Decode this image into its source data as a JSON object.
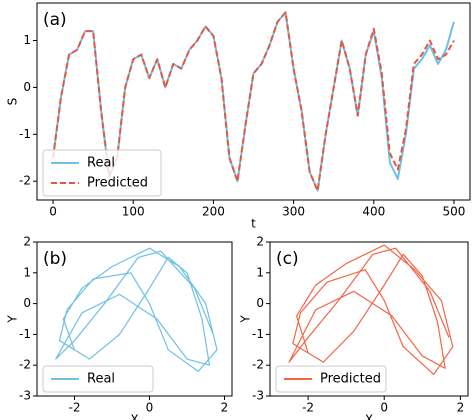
{
  "chart_data": [
    {
      "type": "line",
      "panel_label": "(a)",
      "xlabel": "t",
      "ylabel": "S",
      "x": [
        0,
        10,
        20,
        30,
        40,
        50,
        60,
        70,
        80,
        90,
        100,
        110,
        120,
        130,
        140,
        150,
        160,
        170,
        180,
        190,
        200,
        210,
        220,
        230,
        240,
        250,
        260,
        270,
        280,
        290,
        300,
        310,
        320,
        330,
        340,
        350,
        360,
        370,
        380,
        390,
        400,
        410,
        420,
        430,
        440,
        450,
        460,
        470,
        480,
        490,
        500
      ],
      "series": [
        {
          "name": "Real",
          "color": "#6ec1e4",
          "dash": false,
          "values": [
            -1.5,
            -0.2,
            0.7,
            0.8,
            1.2,
            1.2,
            -0.5,
            -1.9,
            -1.5,
            0.0,
            0.6,
            0.7,
            0.2,
            0.6,
            0.0,
            0.5,
            0.4,
            0.8,
            1.0,
            1.3,
            1.1,
            0.2,
            -1.5,
            -2.0,
            -0.8,
            0.3,
            0.5,
            0.9,
            1.4,
            1.6,
            0.4,
            -0.5,
            -1.8,
            -2.2,
            -1.0,
            0.0,
            1.0,
            0.4,
            -0.6,
            0.7,
            1.2,
            0.2,
            -1.6,
            -1.95,
            -1.0,
            0.4,
            0.6,
            0.9,
            0.5,
            0.8,
            1.4
          ]
        },
        {
          "name": "Predicted",
          "color": "#e8563f",
          "dash": true,
          "values": [
            -1.5,
            -0.2,
            0.7,
            0.8,
            1.2,
            1.2,
            -0.5,
            -1.9,
            -1.5,
            0.0,
            0.6,
            0.7,
            0.2,
            0.6,
            0.0,
            0.5,
            0.4,
            0.8,
            1.0,
            1.3,
            1.1,
            0.2,
            -1.5,
            -2.0,
            -0.8,
            0.3,
            0.5,
            0.9,
            1.4,
            1.6,
            0.4,
            -0.5,
            -1.8,
            -2.2,
            -1.0,
            0.0,
            1.0,
            0.4,
            -0.6,
            0.7,
            1.25,
            0.3,
            -1.4,
            -1.75,
            -0.9,
            0.5,
            0.7,
            1.0,
            0.6,
            0.7,
            1.0
          ]
        }
      ],
      "xlim": [
        -20,
        520
      ],
      "ylim": [
        -2.4,
        1.8
      ],
      "xticks": [
        0,
        100,
        200,
        300,
        400,
        500
      ],
      "yticks": [
        -2,
        -1,
        0,
        1
      ],
      "legend": "lower left"
    },
    {
      "type": "line",
      "panel_label": "(b)",
      "xlabel": "X",
      "ylabel": "Y",
      "x": [
        -2,
        -2.3,
        -1.8,
        -1,
        0,
        0.8,
        1.5,
        1.8,
        1.3,
        0.5,
        0,
        -0.5,
        -1.5,
        -2.2,
        -2.4,
        -1.6,
        -0.8,
        0,
        0.5,
        1,
        1.4,
        1.6,
        1,
        0.2,
        -0.8,
        -1.8,
        -2.5,
        -2,
        -1.2,
        -0.3,
        0.3,
        1.2,
        1.7
      ],
      "series": [
        {
          "name": "Real",
          "color": "#6ec1e4",
          "dash": false,
          "values": [
            -1.5,
            -0.5,
            0.5,
            1.2,
            1.8,
            1.2,
            0,
            -1.5,
            -2.2,
            -1.5,
            0,
            1,
            0.8,
            -0.2,
            -1.2,
            -1.8,
            -1,
            0.5,
            1.5,
            1,
            -0.5,
            -2,
            -1.8,
            -0.5,
            0.3,
            -0.3,
            -1.8,
            -1.2,
            0,
            1.5,
            1.7,
            0.5,
            -1
          ]
        }
      ],
      "xlim": [
        -3,
        2.2
      ],
      "ylim": [
        -3,
        2
      ],
      "xticks": [
        -2,
        0,
        2
      ],
      "yticks": [
        -3,
        -2,
        -1,
        0,
        1,
        2
      ],
      "legend": "lower left"
    },
    {
      "type": "line",
      "panel_label": "(c)",
      "xlabel": "X",
      "ylabel": "Y",
      "x": [
        -2,
        -2.3,
        -1.8,
        -1,
        0,
        0.8,
        1.5,
        1.8,
        1.3,
        0.5,
        0,
        -0.5,
        -1.5,
        -2.2,
        -2.4,
        -1.6,
        -0.8,
        0,
        0.5,
        1,
        1.4,
        1.6,
        1,
        0.2,
        -0.8,
        -1.8,
        -2.5,
        -2,
        -1.2,
        -0.3,
        0.3,
        1.2,
        1.7
      ],
      "series": [
        {
          "name": "Predicted",
          "color": "#f26545",
          "dash": false,
          "values": [
            -1.6,
            -0.4,
            0.6,
            1.3,
            1.9,
            1.1,
            0.1,
            -1.4,
            -2.3,
            -1.4,
            0.1,
            1.1,
            0.7,
            -0.3,
            -1.3,
            -1.9,
            -0.9,
            0.6,
            1.6,
            0.9,
            -0.6,
            -2.1,
            -1.7,
            -0.4,
            0.4,
            -0.2,
            -1.9,
            -1.1,
            0.1,
            1.6,
            1.8,
            0.4,
            -1.1
          ]
        }
      ],
      "xlim": [
        -3,
        2.2
      ],
      "ylim": [
        -3,
        2
      ],
      "xticks": [
        -2,
        0,
        2
      ],
      "yticks": [
        -3,
        -2,
        -1,
        0,
        1,
        2
      ],
      "legend": "lower left"
    }
  ]
}
